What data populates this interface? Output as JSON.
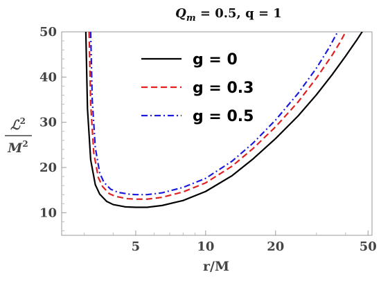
{
  "chart_data": {
    "type": "line",
    "title": "Q_m = 0.5, q = 1",
    "title_parts": {
      "symbol": "Q",
      "subscript": "m",
      "rest": " = 0.5, q = 1"
    },
    "xlabel": "r/M",
    "ylabel_top": "ℒ",
    "ylabel_top_exp": "2",
    "ylabel_bottom": "M",
    "ylabel_bottom_exp": "2",
    "x_scale": "log",
    "xlim": [
      2.4,
      52
    ],
    "ylim": [
      5,
      50
    ],
    "x_ticks": [
      5,
      10,
      20,
      50
    ],
    "x_tick_labels": [
      "5",
      "10",
      "20",
      "50"
    ],
    "y_ticks": [
      10,
      20,
      30,
      40,
      50
    ],
    "y_tick_labels": [
      "10",
      "20",
      "30",
      "40",
      "50"
    ],
    "grid": false,
    "legend_position": "top-center",
    "series": [
      {
        "name": "g = 0",
        "color": "#000000",
        "dash": "solid",
        "x": [
          3.05,
          3.1,
          3.2,
          3.35,
          3.5,
          3.75,
          4.0,
          4.5,
          5.0,
          5.6,
          6.5,
          8.0,
          10.0,
          13.0,
          16.0,
          20.0,
          25.0,
          30.0,
          35.0,
          40.0,
          45.0,
          50.0
        ],
        "y": [
          50.0,
          33.0,
          21.7,
          16.2,
          14.1,
          12.5,
          11.8,
          11.3,
          11.2,
          11.2,
          11.6,
          12.7,
          14.7,
          18.2,
          21.9,
          26.4,
          31.4,
          36.1,
          40.5,
          44.6,
          48.4,
          52.0
        ]
      },
      {
        "name": "g = 0.3",
        "color": "#e02020",
        "dash": "dashed",
        "x": [
          3.15,
          3.2,
          3.3,
          3.45,
          3.6,
          3.85,
          4.1,
          4.6,
          5.0,
          5.6,
          6.5,
          8.0,
          10.0,
          13.0,
          16.0,
          20.0,
          25.0,
          30.0,
          35.0,
          38.0,
          41.0
        ],
        "y": [
          50.0,
          34.0,
          23.2,
          17.8,
          15.8,
          14.2,
          13.6,
          13.1,
          13.0,
          13.0,
          13.4,
          14.6,
          16.6,
          20.3,
          24.2,
          29.0,
          34.5,
          39.8,
          44.8,
          47.8,
          51.0
        ]
      },
      {
        "name": "g = 0.5",
        "color": "#1a1ae0",
        "dash": "dashdot",
        "x": [
          3.2,
          3.25,
          3.35,
          3.5,
          3.65,
          3.9,
          4.2,
          4.7,
          5.0,
          5.6,
          6.5,
          8.0,
          10.0,
          13.0,
          16.0,
          20.0,
          25.0,
          30.0,
          34.0,
          37.0
        ],
        "y": [
          50.0,
          35.0,
          24.4,
          18.8,
          16.7,
          15.2,
          14.5,
          14.1,
          14.0,
          14.0,
          14.4,
          15.6,
          17.6,
          21.4,
          25.4,
          30.5,
          36.4,
          42.0,
          46.5,
          50.0
        ]
      }
    ]
  }
}
